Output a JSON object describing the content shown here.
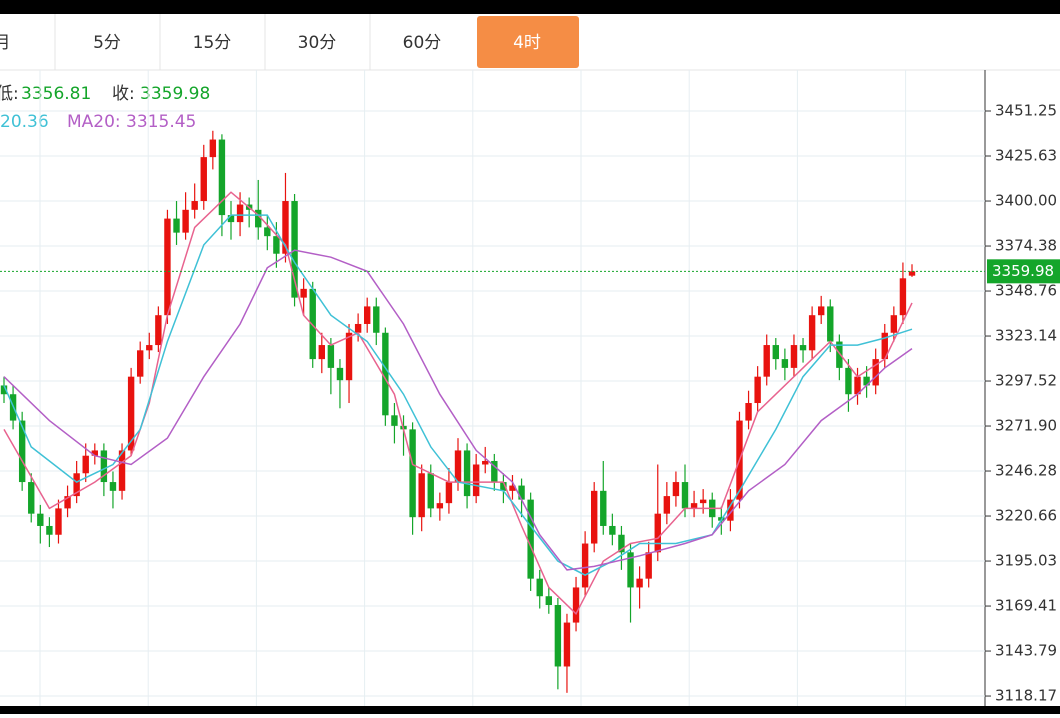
{
  "tabs": [
    "月",
    "5分",
    "15分",
    "30分",
    "60分",
    "4时"
  ],
  "info": {
    "low_label": "低:",
    "low": "3356.81",
    "close_label": "收:",
    "close": "3359.98",
    "ma10": "20.36",
    "ma20": "MA20: 3315.45"
  },
  "chart_data": {
    "type": "candlestick",
    "ylim": [
      3112.5,
      3474.6
    ],
    "yticks": [
      3451.25,
      3425.63,
      {
        "value": 3400,
        "label": "3400.00"
      },
      3374.38,
      3348.76,
      3323.14,
      3297.52,
      {
        "value": 3271.9,
        "label": "3271.90"
      },
      3246.28,
      3220.66,
      3195.03,
      3169.41,
      3143.79,
      3118.17
    ],
    "grid": true,
    "up_color": "#e8130f",
    "down_color": "#14a52a",
    "open": [
      3295,
      3290,
      3275,
      3240,
      3222,
      3215,
      3210,
      3225,
      3232,
      3245,
      3255,
      3258,
      3240,
      3235,
      3258,
      3300,
      3315,
      3318,
      3335,
      3390,
      3382,
      3395,
      3400,
      3425,
      3435,
      3392,
      3388,
      3398,
      3395,
      3385,
      3380,
      3370,
      3400,
      3345,
      3350,
      3310,
      3318,
      3305,
      3298,
      3325,
      3330,
      3340,
      3325,
      3278,
      3272,
      3270,
      3220,
      3245,
      3225,
      3228,
      3240,
      3258,
      3232,
      3250,
      3252,
      3240,
      3235,
      3238,
      3230,
      3185,
      3175,
      3170,
      3135,
      3160,
      3180,
      3205,
      3235,
      3215,
      3210,
      3200,
      3180,
      3185,
      3200,
      3222,
      3232,
      3240,
      3225,
      3228,
      3230,
      3220,
      3218,
      3230,
      3275,
      3285,
      3300,
      3318,
      3310,
      3305,
      3318,
      3315,
      3335,
      3340,
      3320,
      3305,
      3290,
      3300,
      3295,
      3310,
      3325,
      3335,
      3357.5
    ],
    "high": [
      3300,
      3295,
      3280,
      3245,
      3227,
      3220,
      3230,
      3238,
      3252,
      3262,
      3262,
      3262,
      3246,
      3262,
      3305,
      3320,
      3325,
      3340,
      3395,
      3400,
      3405,
      3410,
      3432,
      3440,
      3438,
      3400,
      3405,
      3402,
      3412,
      3392,
      3388,
      3416,
      3404,
      3356,
      3354,
      3325,
      3322,
      3310,
      3330,
      3336,
      3345,
      3345,
      3328,
      3285,
      3278,
      3274,
      3250,
      3250,
      3234,
      3248,
      3265,
      3262,
      3256,
      3260,
      3256,
      3245,
      3244,
      3242,
      3234,
      3190,
      3180,
      3174,
      3165,
      3186,
      3212,
      3240,
      3252,
      3222,
      3215,
      3205,
      3192,
      3206,
      3250,
      3240,
      3246,
      3250,
      3235,
      3236,
      3234,
      3226,
      3236,
      3280,
      3292,
      3306,
      3324,
      3322,
      3316,
      3324,
      3322,
      3340,
      3346,
      3344,
      3324,
      3310,
      3305,
      3306,
      3316,
      3330,
      3340,
      3365,
      3364
    ],
    "low": [
      3285,
      3270,
      3235,
      3217,
      3205,
      3203,
      3205,
      3220,
      3228,
      3240,
      3250,
      3232,
      3225,
      3230,
      3255,
      3296,
      3310,
      3314,
      3330,
      3375,
      3378,
      3390,
      3395,
      3418,
      3380,
      3378,
      3380,
      3385,
      3378,
      3372,
      3362,
      3365,
      3340,
      3335,
      3305,
      3302,
      3290,
      3282,
      3285,
      3320,
      3325,
      3318,
      3272,
      3262,
      3255,
      3210,
      3212,
      3220,
      3218,
      3222,
      3235,
      3225,
      3228,
      3245,
      3235,
      3228,
      3230,
      3220,
      3178,
      3168,
      3165,
      3122,
      3120,
      3155,
      3175,
      3200,
      3210,
      3204,
      3190,
      3160,
      3168,
      3180,
      3195,
      3216,
      3226,
      3220,
      3220,
      3222,
      3214,
      3210,
      3212,
      3225,
      3270,
      3280,
      3295,
      3304,
      3298,
      3300,
      3308,
      3310,
      3330,
      3314,
      3298,
      3280,
      3284,
      3288,
      3290,
      3305,
      3320,
      3330,
      3356.81
    ],
    "close": [
      3290,
      3275,
      3240,
      3222,
      3215,
      3210,
      3225,
      3232,
      3245,
      3255,
      3258,
      3240,
      3235,
      3258,
      3300,
      3315,
      3318,
      3335,
      3390,
      3382,
      3395,
      3400,
      3425,
      3435,
      3392,
      3388,
      3398,
      3395,
      3385,
      3380,
      3370,
      3400,
      3345,
      3350,
      3310,
      3318,
      3305,
      3298,
      3325,
      3330,
      3340,
      3325,
      3278,
      3272,
      3270,
      3220,
      3245,
      3225,
      3228,
      3240,
      3258,
      3232,
      3250,
      3252,
      3240,
      3235,
      3238,
      3230,
      3185,
      3175,
      3170,
      3135,
      3160,
      3180,
      3205,
      3235,
      3215,
      3210,
      3200,
      3180,
      3185,
      3200,
      3222,
      3232,
      3240,
      3225,
      3228,
      3230,
      3220,
      3218,
      3230,
      3275,
      3285,
      3300,
      3318,
      3310,
      3305,
      3318,
      3315,
      3335,
      3340,
      3320,
      3305,
      3290,
      3300,
      3295,
      3310,
      3325,
      3335,
      3356,
      3359.98
    ],
    "series": [
      {
        "color": "#e8638f",
        "x": [
          0,
          5,
          10,
          14,
          16,
          18,
          21,
          25,
          28,
          31,
          33,
          36,
          39,
          43,
          45,
          49,
          55,
          57,
          60,
          63,
          66,
          69,
          72,
          75,
          79,
          83,
          88,
          91,
          94,
          97,
          100
        ],
        "values": [
          3270,
          3225,
          3240,
          3255,
          3285,
          3335,
          3385,
          3405,
          3392,
          3375,
          3335,
          3318,
          3325,
          3290,
          3250,
          3240,
          3240,
          3215,
          3180,
          3165,
          3195,
          3205,
          3208,
          3225,
          3225,
          3280,
          3305,
          3320,
          3300,
          3310,
          3342
        ]
      },
      {
        "color": "#3fc1d6",
        "x": [
          0,
          3,
          8,
          12,
          15,
          18,
          22,
          25,
          29,
          32,
          36,
          40,
          44,
          47,
          50,
          55,
          58,
          61,
          64,
          67,
          70,
          74,
          78,
          81,
          85,
          88,
          91,
          94,
          97,
          100
        ],
        "values": [
          3295,
          3260,
          3240,
          3250,
          3270,
          3320,
          3375,
          3392,
          3392,
          3365,
          3335,
          3320,
          3290,
          3260,
          3240,
          3235,
          3215,
          3195,
          3187,
          3195,
          3205,
          3205,
          3210,
          3235,
          3270,
          3300,
          3318,
          3318,
          3322,
          3327
        ]
      },
      {
        "color": "#b35fc6",
        "x": [
          0,
          5,
          10,
          14,
          18,
          22,
          26,
          29,
          32,
          36,
          40,
          44,
          48,
          52,
          56,
          59,
          62,
          65,
          70,
          75,
          78,
          82,
          86,
          90,
          94,
          97,
          100
        ],
        "values": [
          3300,
          3275,
          3255,
          3250,
          3265,
          3300,
          3330,
          3362,
          3372,
          3368,
          3360,
          3330,
          3290,
          3258,
          3240,
          3210,
          3190,
          3192,
          3198,
          3205,
          3210,
          3235,
          3250,
          3275,
          3290,
          3305,
          3316
        ]
      }
    ]
  }
}
